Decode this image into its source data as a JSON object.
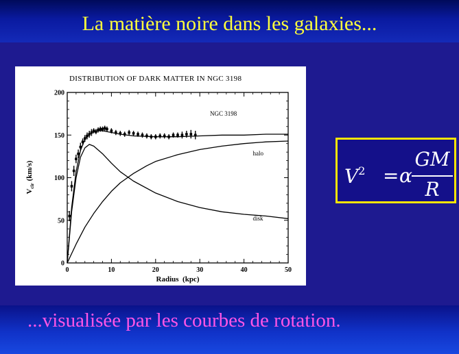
{
  "slide": {
    "title": "La matière noire dans les  galaxies...",
    "subtitle": "...visualisée par les courbes de rotation.",
    "colors": {
      "background": "#1e1a90",
      "title": "#ffff3c",
      "subtitle": "#ff55e6",
      "formula_border": "#ffe600"
    }
  },
  "formula": {
    "lhs": "V",
    "lhs_exp": "2",
    "equals": "=",
    "coef": "α",
    "numerator": "GM",
    "denominator": "R"
  },
  "chart_data": {
    "type": "line",
    "title": "DISTRIBUTION OF DARK MATTER IN NGC 3198",
    "xlabel": "Radius  (kpc)",
    "ylabel": "V",
    "ylabel_sub": "cir",
    "ylabel_unit": "(km/s)",
    "xlim": [
      0,
      50
    ],
    "ylim": [
      0,
      200
    ],
    "xticks": [
      0,
      10,
      20,
      30,
      40,
      50
    ],
    "yticks": [
      0,
      50,
      100,
      150,
      200
    ],
    "grid": false,
    "annotation_label": "NGC 3198",
    "series": [
      {
        "name": "halo",
        "style": "line",
        "x": [
          0,
          2,
          4,
          6,
          8,
          10,
          12,
          15,
          18,
          20,
          25,
          30,
          35,
          40,
          45,
          50
        ],
        "y": [
          0,
          22,
          42,
          58,
          72,
          84,
          94,
          105,
          114,
          119,
          127,
          133,
          137,
          140,
          142,
          143
        ]
      },
      {
        "name": "disk",
        "style": "line",
        "x": [
          0,
          1,
          2,
          3,
          4,
          5,
          6,
          8,
          10,
          12,
          15,
          20,
          25,
          30,
          35,
          40,
          45,
          50
        ],
        "y": [
          0,
          60,
          100,
          124,
          135,
          139,
          137,
          128,
          117,
          107,
          96,
          82,
          72,
          65,
          60,
          57,
          55,
          52
        ]
      },
      {
        "name": "",
        "style": "line",
        "x": [
          0,
          1,
          2,
          3,
          4,
          5,
          6,
          7,
          8,
          10,
          12,
          15,
          20,
          25,
          30,
          35,
          40,
          45,
          50
        ],
        "y": [
          0,
          65,
          107,
          132,
          145,
          151,
          154,
          155,
          155,
          153,
          151,
          149,
          148,
          148,
          149,
          150,
          150,
          151,
          151
        ]
      },
      {
        "name": "",
        "style": "points_with_error",
        "x": [
          0.5,
          1,
          1.5,
          2,
          2.5,
          3,
          3.5,
          4,
          4.5,
          5,
          5.5,
          6,
          6.5,
          7,
          7.5,
          8,
          8.5,
          9,
          10,
          11,
          12,
          13,
          14,
          15,
          16,
          17,
          18,
          19,
          20,
          21,
          22,
          23,
          24,
          25,
          26,
          27,
          28,
          29
        ],
        "y": [
          55,
          90,
          108,
          122,
          128,
          136,
          142,
          146,
          149,
          151,
          153,
          155,
          154,
          156,
          157,
          157,
          158,
          157,
          155,
          153,
          152,
          151,
          153,
          152,
          151,
          150,
          149,
          148,
          148,
          149,
          149,
          148,
          150,
          150,
          150,
          151,
          151,
          150
        ],
        "err": [
          6,
          6,
          6,
          5,
          5,
          5,
          4,
          4,
          4,
          4,
          4,
          3,
          3,
          3,
          3,
          3,
          3,
          3,
          3,
          3,
          3,
          3,
          3,
          3,
          3,
          3,
          3,
          3,
          3,
          3,
          3,
          3,
          3,
          3,
          4,
          4,
          5,
          5
        ]
      }
    ]
  }
}
